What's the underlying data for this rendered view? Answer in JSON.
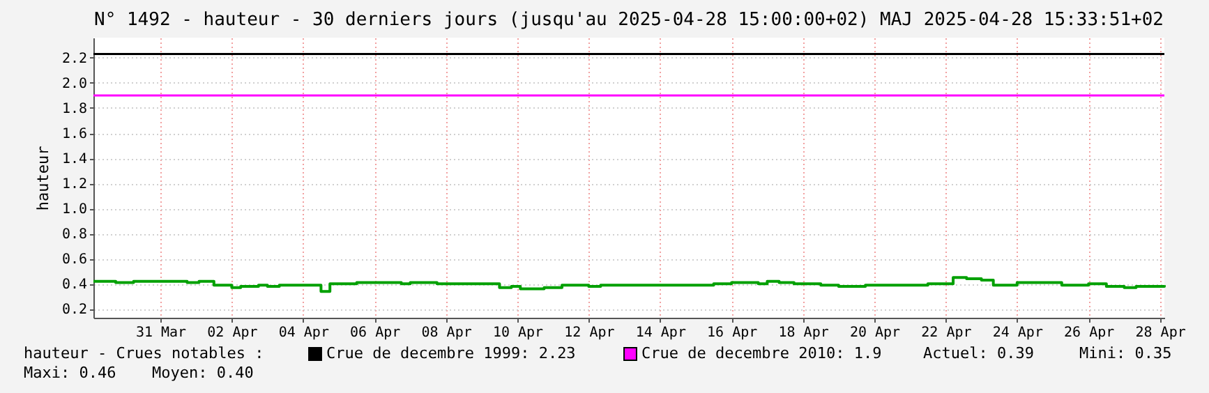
{
  "chart_data": {
    "type": "step",
    "title": "N° 1492 - hauteur - 30 derniers jours (jusqu'au 2025-04-28 15:00:00+02) MAJ 2025-04-28 15:33:51+02",
    "ylabel": "hauteur",
    "legend_title": "hauteur - Crues notables :",
    "legend": "bottom",
    "grid": true,
    "marker": "none",
    "line_style": "solid",
    "x": [
      "2025-03-29T15:00",
      "2025-03-30T06:00",
      "2025-03-30T18:00",
      "2025-03-31T12:00",
      "2025-04-01T06:00",
      "2025-04-01T14:00",
      "2025-04-02T00:00",
      "2025-04-02T12:00",
      "2025-04-02T18:00",
      "2025-04-03T06:00",
      "2025-04-03T12:00",
      "2025-04-03T20:00",
      "2025-04-04T12:00",
      "2025-04-05T00:00",
      "2025-04-05T06:00",
      "2025-04-06T00:00",
      "2025-04-07T06:00",
      "2025-04-07T12:00",
      "2025-04-08T06:00",
      "2025-04-09T12:00",
      "2025-04-10T00:00",
      "2025-04-10T08:00",
      "2025-04-10T14:00",
      "2025-04-11T06:00",
      "2025-04-11T18:00",
      "2025-04-12T12:00",
      "2025-04-12T20:00",
      "2025-04-14T00:00",
      "2025-04-16T00:00",
      "2025-04-16T12:00",
      "2025-04-17T06:00",
      "2025-04-17T12:00",
      "2025-04-17T20:00",
      "2025-04-18T06:00",
      "2025-04-19T00:00",
      "2025-04-19T12:00",
      "2025-04-20T06:00",
      "2025-04-21T06:00",
      "2025-04-22T00:00",
      "2025-04-22T17:00",
      "2025-04-23T02:00",
      "2025-04-23T12:00",
      "2025-04-23T20:00",
      "2025-04-24T12:00",
      "2025-04-25T00:00",
      "2025-04-25T18:00",
      "2025-04-26T12:00",
      "2025-04-27T00:00",
      "2025-04-27T12:00",
      "2025-04-27T20:00",
      "2025-04-28T15:00"
    ],
    "values": [
      0.42,
      0.41,
      0.42,
      0.42,
      0.41,
      0.42,
      0.39,
      0.37,
      0.38,
      0.39,
      0.38,
      0.39,
      0.39,
      0.34,
      0.4,
      0.41,
      0.4,
      0.41,
      0.4,
      0.4,
      0.37,
      0.38,
      0.36,
      0.37,
      0.39,
      0.38,
      0.39,
      0.39,
      0.4,
      0.41,
      0.4,
      0.42,
      0.41,
      0.4,
      0.39,
      0.38,
      0.39,
      0.39,
      0.4,
      0.45,
      0.44,
      0.43,
      0.39,
      0.41,
      0.41,
      0.39,
      0.4,
      0.38,
      0.37,
      0.38,
      0.39
    ],
    "color": "#00a000",
    "xlim": [
      "2025-03-29T15:00",
      "2025-04-28T15:00"
    ],
    "xticks": [
      {
        "value": "2025-03-31T12:00",
        "label": "31 Mar"
      },
      {
        "value": "2025-04-02T12:00",
        "label": "02 Apr"
      },
      {
        "value": "2025-04-04T12:00",
        "label": "04 Apr"
      },
      {
        "value": "2025-04-06T12:00",
        "label": "06 Apr"
      },
      {
        "value": "2025-04-08T12:00",
        "label": "08 Apr"
      },
      {
        "value": "2025-04-10T12:00",
        "label": "10 Apr"
      },
      {
        "value": "2025-04-12T12:00",
        "label": "12 Apr"
      },
      {
        "value": "2025-04-14T12:00",
        "label": "14 Apr"
      },
      {
        "value": "2025-04-16T12:00",
        "label": "16 Apr"
      },
      {
        "value": "2025-04-18T12:00",
        "label": "18 Apr"
      },
      {
        "value": "2025-04-20T12:00",
        "label": "20 Apr"
      },
      {
        "value": "2025-04-22T12:00",
        "label": "22 Apr"
      },
      {
        "value": "2025-04-24T12:00",
        "label": "24 Apr"
      },
      {
        "value": "2025-04-26T12:00",
        "label": "26 Apr"
      },
      {
        "value": "2025-04-28T12:00",
        "label": "28 Apr"
      }
    ],
    "ylim": [
      0.13,
      2.36
    ],
    "yticks": [
      0.2,
      0.4,
      0.6,
      0.8,
      {
        "value": 1,
        "label": "1.0"
      },
      1.2,
      1.4,
      1.6,
      1.8,
      {
        "value": 2,
        "label": "2.0"
      },
      2.2
    ],
    "ref_lines": [
      {
        "axis": "y",
        "value": 2.23,
        "label": "Crue de decembre 1999: 2.23",
        "color": "#000000"
      },
      {
        "axis": "y",
        "value": 1.9,
        "label": "Crue de decembre 2010: 1.9",
        "color": "#ff00ff"
      }
    ],
    "annotations": [
      "Actuel: 0.39",
      "Mini: 0.35",
      "Maxi: 0.46",
      "Moyen: 0.40"
    ]
  }
}
